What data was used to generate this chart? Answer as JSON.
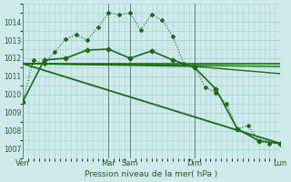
{
  "xlabel": "Pression niveau de la mer( hPa )",
  "bg_color": "#ceeaea",
  "grid_color": "#a8d0d0",
  "line_color": "#1a6b1a",
  "ylim": [
    1006.5,
    1014.8
  ],
  "yticks": [
    1007,
    1008,
    1009,
    1010,
    1011,
    1012,
    1013,
    1014
  ],
  "xtick_labels": [
    "Ven",
    "Mar",
    "Sam",
    "Dim",
    "Lun"
  ],
  "xtick_positions": [
    0,
    8,
    10,
    16,
    24
  ],
  "vlines": [
    0,
    8,
    10,
    16,
    24
  ],
  "series": [
    {
      "x": [
        0,
        1,
        2,
        3,
        4,
        5,
        6,
        7,
        8,
        9,
        10,
        11,
        12,
        13,
        14,
        15,
        16,
        17,
        18,
        19,
        20,
        21,
        22,
        23,
        24
      ],
      "y": [
        1009.6,
        1011.9,
        1011.7,
        1012.35,
        1013.05,
        1013.3,
        1013.0,
        1013.7,
        1014.5,
        1014.4,
        1014.5,
        1013.55,
        1014.4,
        1014.1,
        1013.2,
        1011.7,
        1011.55,
        1010.4,
        1010.1,
        1009.5,
        1008.1,
        1008.3,
        1007.45,
        1007.3,
        1007.3
      ],
      "linestyle": "dotted",
      "marker": "D",
      "markersize": 2.0,
      "linewidth": 0.8,
      "zorder": 4
    },
    {
      "x": [
        0,
        24
      ],
      "y": [
        1011.7,
        1011.7
      ],
      "linestyle": "solid",
      "marker": null,
      "markersize": 0,
      "linewidth": 1.2,
      "zorder": 2
    },
    {
      "x": [
        0,
        24
      ],
      "y": [
        1011.7,
        1011.55
      ],
      "linestyle": "solid",
      "marker": null,
      "markersize": 0,
      "linewidth": 1.0,
      "zorder": 2
    },
    {
      "x": [
        0,
        16,
        24
      ],
      "y": [
        1011.7,
        1011.55,
        1011.15
      ],
      "linestyle": "solid",
      "marker": null,
      "markersize": 0,
      "linewidth": 1.0,
      "zorder": 2
    },
    {
      "x": [
        0,
        24
      ],
      "y": [
        1011.7,
        1007.3
      ],
      "linestyle": "solid",
      "marker": null,
      "markersize": 0,
      "linewidth": 1.3,
      "zorder": 2
    },
    {
      "x": [
        0,
        2,
        4,
        6,
        8,
        10,
        12,
        14,
        16,
        18,
        20,
        22,
        24
      ],
      "y": [
        1009.6,
        1011.9,
        1012.0,
        1012.45,
        1012.5,
        1012.0,
        1012.4,
        1011.9,
        1011.5,
        1010.3,
        1008.1,
        1007.45,
        1007.3
      ],
      "linestyle": "solid",
      "marker": "D",
      "markersize": 2.5,
      "linewidth": 1.2,
      "zorder": 3
    }
  ]
}
